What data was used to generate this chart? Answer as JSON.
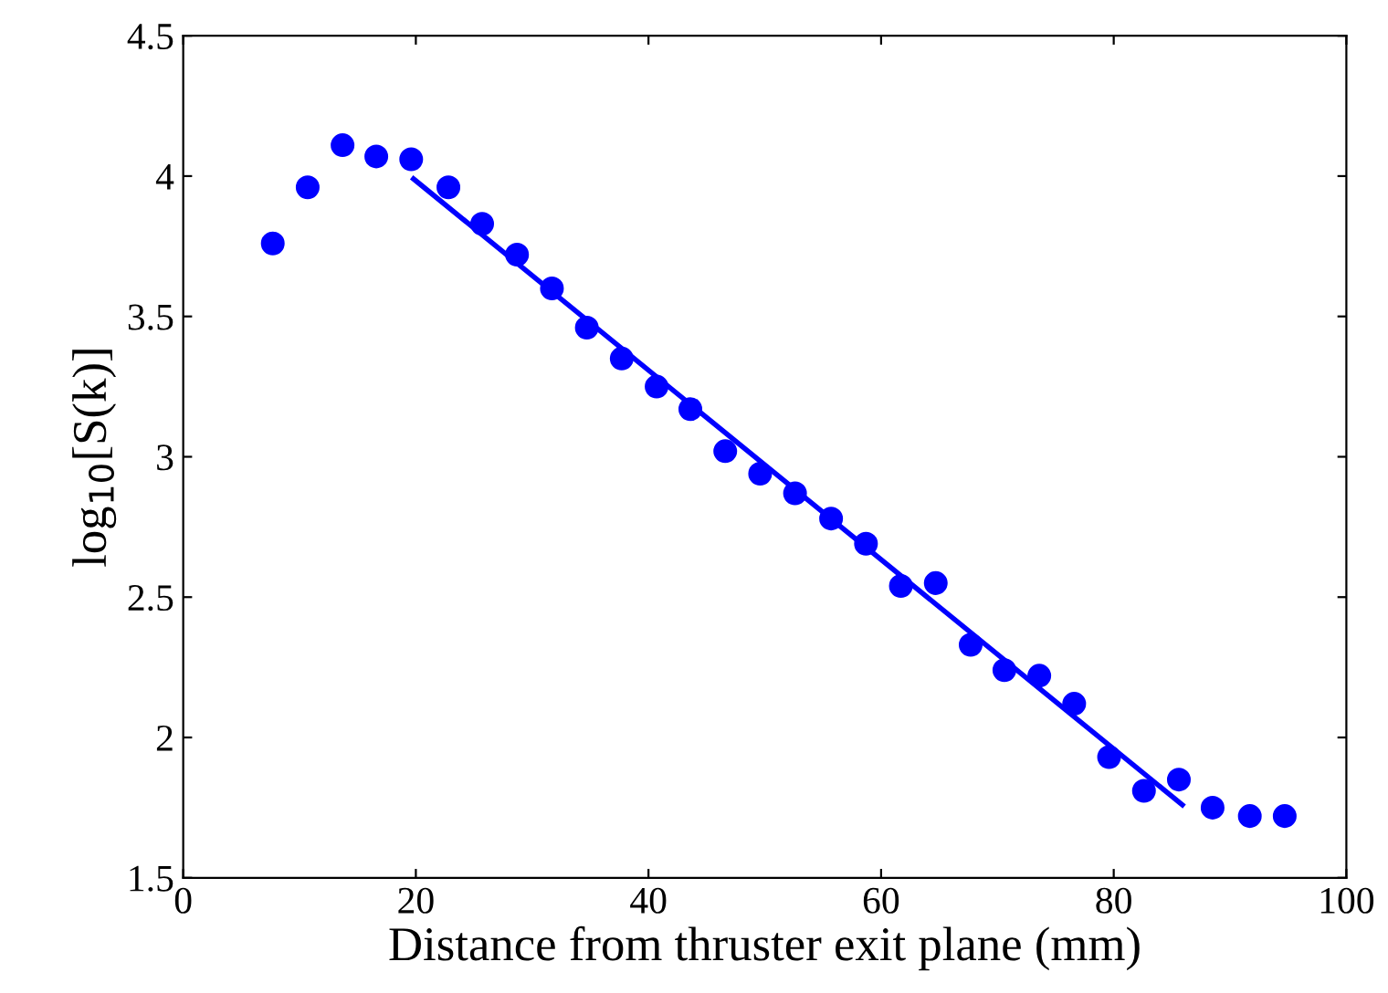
{
  "chart_data": {
    "type": "scatter",
    "xlabel": "Distance from thruster exit plane (mm)",
    "ylabel": "log$_{10}$[S(k)]",
    "xlim": [
      0,
      100
    ],
    "ylim": [
      1.5,
      4.5
    ],
    "xticks": [
      0,
      20,
      40,
      60,
      80,
      100
    ],
    "yticks": [
      1.5,
      2,
      2.5,
      3,
      3.5,
      4,
      4.5
    ],
    "grid": false,
    "series": [
      {
        "marker": "circle",
        "color": "#0000ff",
        "x": [
          7.7,
          10.7,
          13.7,
          16.6,
          19.6,
          22.8,
          25.7,
          28.7,
          31.7,
          34.7,
          37.7,
          40.7,
          43.6,
          46.6,
          49.6,
          52.6,
          55.7,
          58.7,
          61.7,
          64.7,
          67.7,
          70.6,
          73.6,
          76.6,
          79.6,
          82.6,
          85.6,
          88.5,
          91.7,
          94.7
        ],
        "values": [
          3.76,
          3.96,
          4.11,
          4.07,
          4.06,
          3.96,
          3.83,
          3.72,
          3.6,
          3.46,
          3.35,
          3.25,
          3.17,
          3.02,
          2.94,
          2.87,
          2.78,
          2.69,
          2.54,
          2.55,
          2.33,
          2.24,
          2.22,
          2.12,
          1.93,
          1.81,
          1.85,
          1.75,
          1.72,
          1.72
        ]
      },
      {
        "type": "line",
        "marker": "none",
        "color": "#0000ff",
        "x": [
          19.8,
          85.9
        ],
        "values": [
          3.99,
          1.76
        ]
      }
    ]
  }
}
